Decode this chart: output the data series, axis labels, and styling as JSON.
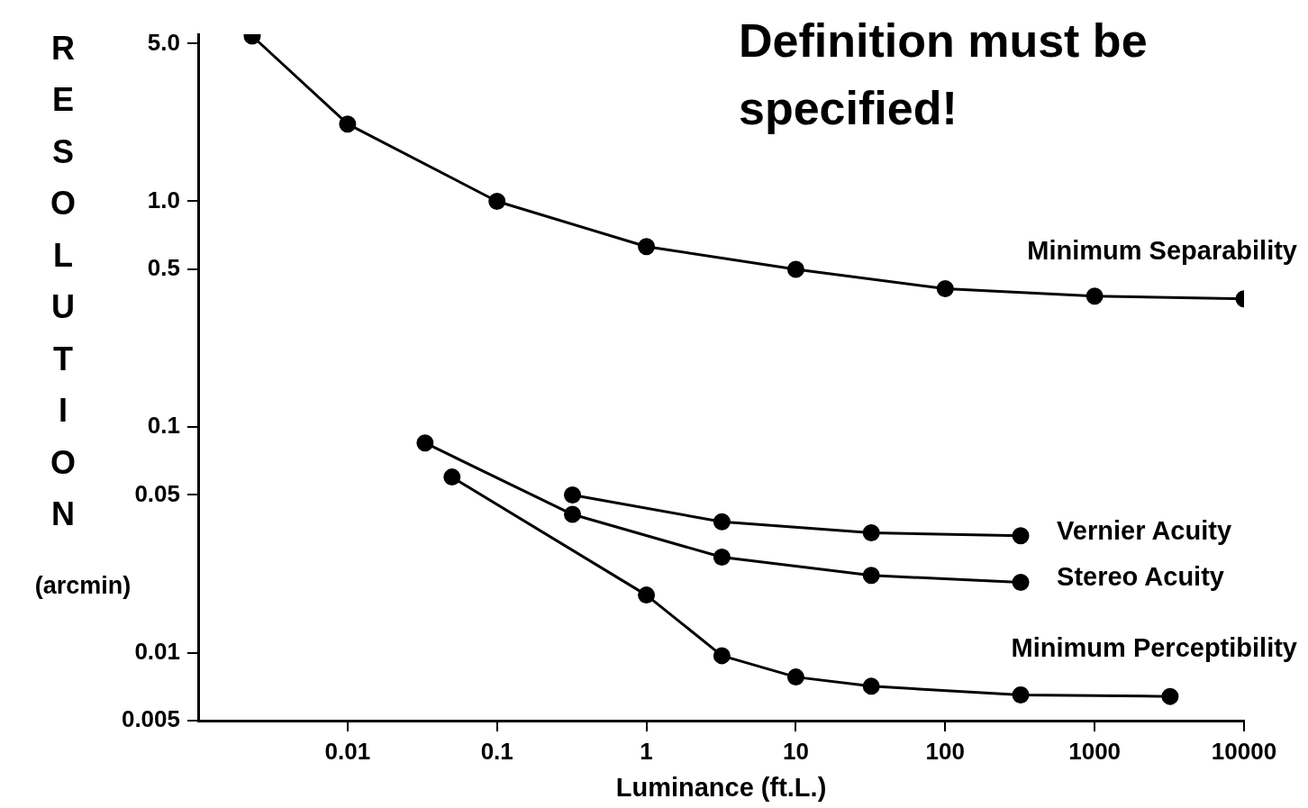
{
  "chart_data": {
    "type": "line",
    "title": "Definition must be specified!",
    "xlabel": "Luminance (ft.L.)",
    "ylabel": "RESOLUTION (arcmin)",
    "log": "xy",
    "grid": false,
    "legend": false,
    "marker": "circle",
    "line_style": "solid",
    "xlim": [
      0.001,
      10000
    ],
    "xticks": [
      0.01,
      0.1,
      1,
      10,
      100,
      1000,
      10000
    ],
    "ylim": [
      0.005,
      5.5
    ],
    "yticks": [
      0.005,
      0.01,
      0.05,
      0.1,
      0.5,
      {
        "value": 1,
        "label": "1.0"
      },
      {
        "value": 5,
        "label": "5.0"
      }
    ],
    "series": [
      {
        "name": "Minimum Separability",
        "color": "#000000",
        "x": [
          0.0023,
          0.01,
          0.1,
          1,
          10,
          100,
          1000,
          10000
        ],
        "values": [
          5.4,
          2.2,
          1.0,
          0.63,
          0.5,
          0.41,
          0.38,
          0.37
        ]
      },
      {
        "name": "Vernier Acuity",
        "color": "#000000",
        "x": [
          0.32,
          3.2,
          32,
          320
        ],
        "values": [
          0.05,
          0.038,
          0.034,
          0.033
        ]
      },
      {
        "name": "Stereo Acuity",
        "color": "#000000",
        "x": [
          0.033,
          0.32,
          3.2,
          32,
          320
        ],
        "values": [
          0.085,
          0.041,
          0.0265,
          0.022,
          0.0205
        ]
      },
      {
        "name": "Minimum Perceptibility",
        "color": "#000000",
        "x": [
          0.05,
          1,
          3.2,
          10,
          32,
          320,
          3200
        ],
        "values": [
          0.06,
          0.018,
          0.0097,
          0.0078,
          0.0071,
          0.0065,
          0.0064
        ]
      }
    ]
  }
}
